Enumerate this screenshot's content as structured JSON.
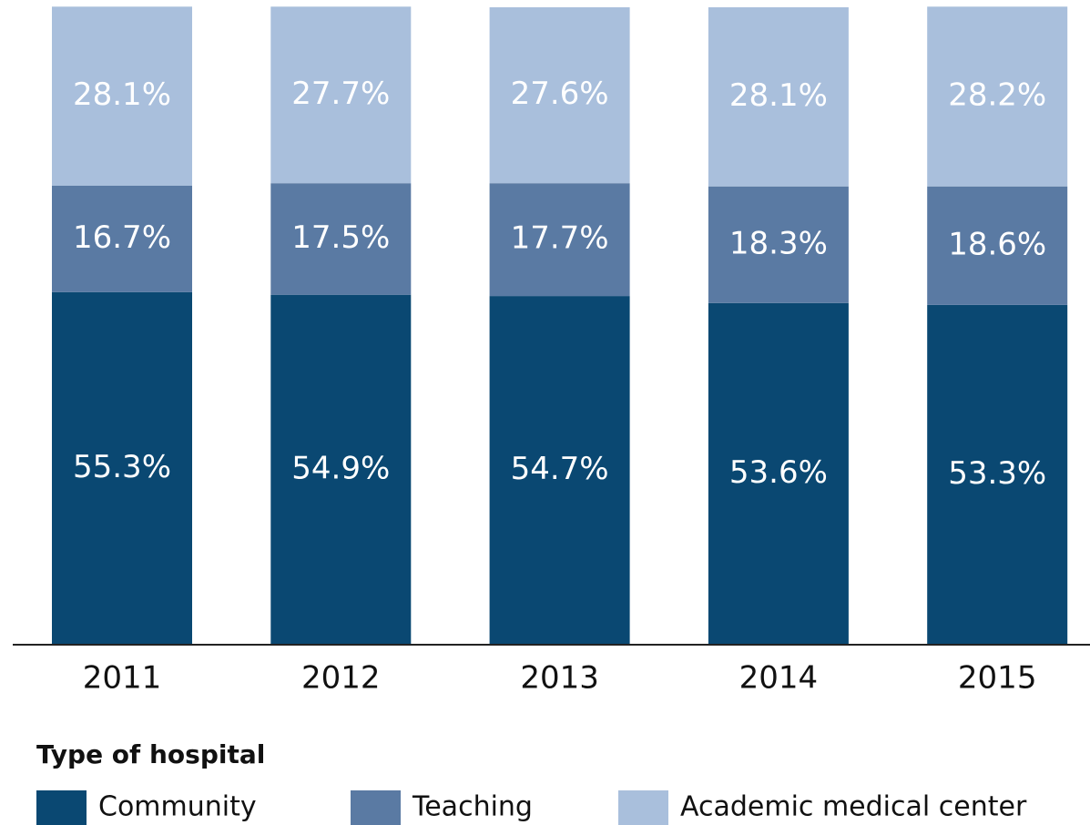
{
  "chart_data": {
    "type": "stacked_bar",
    "categories": [
      "2011",
      "2012",
      "2013",
      "2014",
      "2015"
    ],
    "ylim": [
      0,
      100
    ],
    "legend_title": "Type of hospital",
    "series": [
      {
        "name": "Community",
        "color": "#0a4872",
        "values": [
          55.3,
          54.9,
          54.7,
          53.6,
          53.3
        ],
        "value_labels": [
          "55.3%",
          "54.9%",
          "54.7%",
          "53.6%",
          "53.3%"
        ]
      },
      {
        "name": "Teaching",
        "color": "#5a7aa3",
        "values": [
          16.7,
          17.5,
          17.7,
          18.3,
          18.6
        ],
        "value_labels": [
          "16.7%",
          "17.5%",
          "17.7%",
          "18.3%",
          "18.6%"
        ]
      },
      {
        "name": "Academic medical center",
        "color": "#a9bfdc",
        "values": [
          28.1,
          27.7,
          27.6,
          28.1,
          28.2
        ],
        "value_labels": [
          "28.1%",
          "27.7%",
          "27.6%",
          "28.1%",
          "28.2%"
        ]
      }
    ]
  }
}
